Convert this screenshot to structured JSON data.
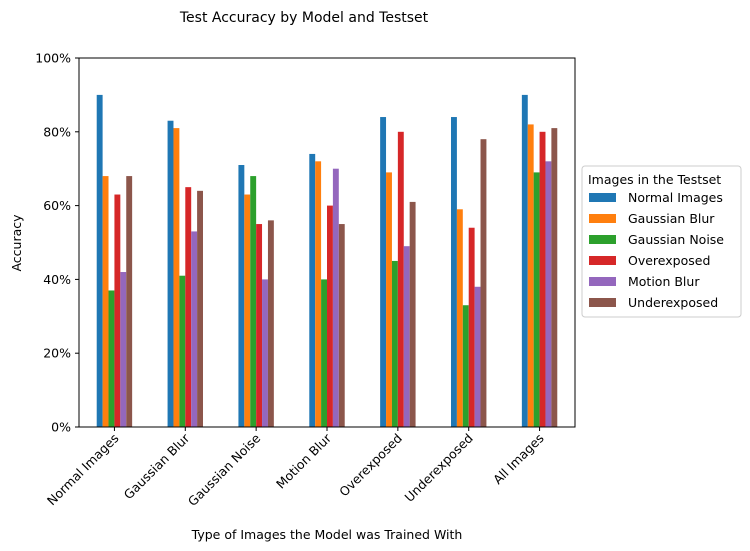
{
  "chart_data": {
    "type": "bar",
    "title": "Test Accuracy by Model and Testset",
    "xlabel": "Type of Images the Model was Trained With",
    "ylabel": "Accuracy",
    "ylim": [
      0,
      1
    ],
    "yticks": [
      0,
      0.2,
      0.4,
      0.6,
      0.8,
      1.0
    ],
    "ytick_labels": [
      "0%",
      "20%",
      "40%",
      "60%",
      "80%",
      "100%"
    ],
    "categories": [
      "Normal Images",
      "Gaussian Blur",
      "Gaussian Noise",
      "Motion Blur",
      "Overexposed",
      "Underexposed",
      "All Images"
    ],
    "legend_title": "Images in the Testset",
    "legend_position": "right, outside plot area",
    "grid": false,
    "series": [
      {
        "name": "Normal Images",
        "color": "#1f77b4",
        "values": [
          0.9,
          0.83,
          0.71,
          0.74,
          0.84,
          0.84,
          0.9
        ]
      },
      {
        "name": "Gaussian Blur",
        "color": "#ff7f0e",
        "values": [
          0.68,
          0.81,
          0.63,
          0.72,
          0.69,
          0.59,
          0.82
        ]
      },
      {
        "name": "Gaussian Noise",
        "color": "#2ca02c",
        "values": [
          0.37,
          0.41,
          0.68,
          0.4,
          0.45,
          0.33,
          0.69
        ]
      },
      {
        "name": "Overexposed",
        "color": "#d62728",
        "values": [
          0.63,
          0.65,
          0.55,
          0.6,
          0.8,
          0.54,
          0.8
        ]
      },
      {
        "name": "Motion Blur",
        "color": "#9467bd",
        "values": [
          0.42,
          0.53,
          0.4,
          0.7,
          0.49,
          0.38,
          0.72
        ]
      },
      {
        "name": "Underexposed",
        "color": "#8c564b",
        "values": [
          0.68,
          0.64,
          0.56,
          0.55,
          0.61,
          0.78,
          0.81
        ]
      }
    ]
  }
}
